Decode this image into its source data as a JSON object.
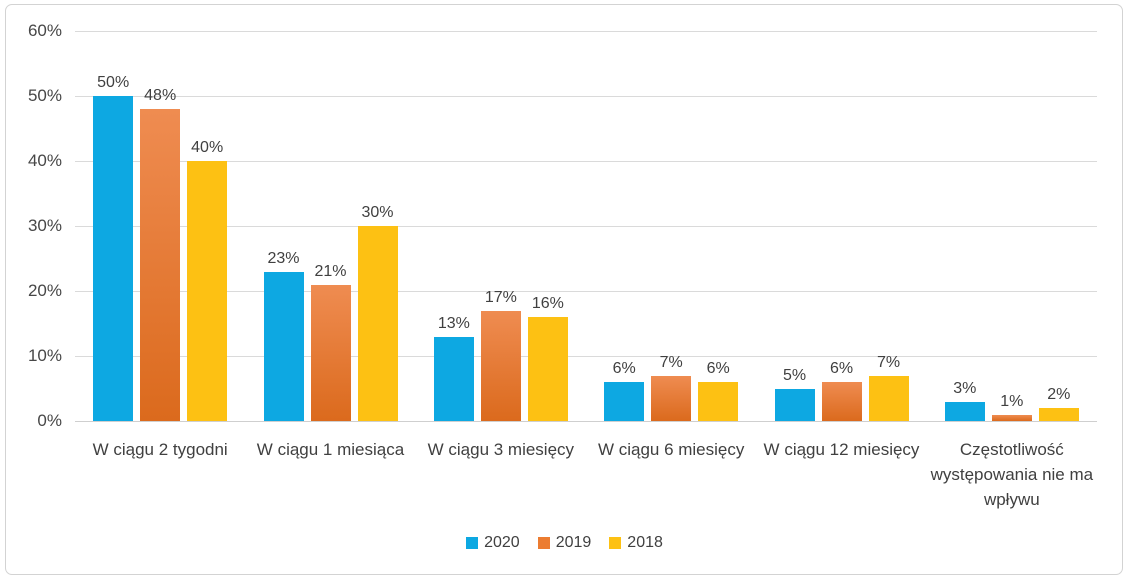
{
  "chart_data": {
    "type": "bar",
    "title": "",
    "categories": [
      "W ciągu 2 tygodni",
      "W ciągu 1 miesiąca",
      "W ciągu 3 miesięcy",
      "W ciągu 6 miesięcy",
      "W ciągu 12 miesięcy",
      "Częstotliwość występowania nie ma wpływu"
    ],
    "series": [
      {
        "name": "2020",
        "values": [
          50,
          23,
          13,
          6,
          5,
          3
        ],
        "color": "#0DA8E2"
      },
      {
        "name": "2019",
        "values": [
          48,
          21,
          17,
          7,
          6,
          1
        ],
        "color": "#EC7C31",
        "color_top": "#EF8C51",
        "color_bottom": "#DB6A1D"
      },
      {
        "name": "2018",
        "values": [
          40,
          30,
          16,
          6,
          7,
          2
        ],
        "color": "#FDC113"
      }
    ],
    "value_suffix": "%",
    "y_axis": {
      "min": 0,
      "max": 60,
      "step": 10,
      "tick_labels": [
        "0%",
        "10%",
        "20%",
        "30%",
        "40%",
        "50%",
        "60%"
      ]
    },
    "grid": true,
    "legend_position": "bottom"
  },
  "colors": {
    "background": "#FFFFFF",
    "gridline": "#DADADA",
    "axis_line": "#CFCFCF",
    "label_text": "#404040",
    "tick_text": "#474747",
    "border": "#D3D3D3"
  }
}
